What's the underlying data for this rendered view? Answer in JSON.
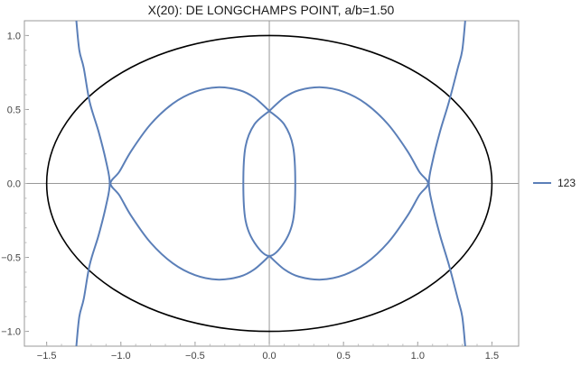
{
  "chart_data": {
    "type": "line",
    "title": "X(20): DE LONGCHAMPS POINT, a/b=1.50",
    "xlabel": "",
    "ylabel": "",
    "xlim": [
      -1.65,
      1.68
    ],
    "ylim": [
      -1.1,
      1.1
    ],
    "x_ticks": [
      -1.5,
      -1.0,
      -0.5,
      0.0,
      0.5,
      1.0,
      1.5
    ],
    "x_tick_labels": [
      "−1.5",
      "−1.0",
      "−0.5",
      "0.0",
      "0.5",
      "1.0",
      "1.5"
    ],
    "y_ticks": [
      -1.0,
      -0.5,
      0.0,
      0.5,
      1.0
    ],
    "y_tick_labels": [
      "−1.0",
      "−0.5",
      "0.0",
      "0.5",
      "1.0"
    ],
    "grid": false,
    "axes_through_origin": true,
    "legend": {
      "position": "right",
      "entries": [
        "123"
      ]
    },
    "colors": {
      "ellipse": "#000000",
      "curve": "#5b7fb8",
      "axes": "#999999",
      "frame": "#999999"
    },
    "ellipse": {
      "a": 1.5,
      "b": 1.0,
      "center": [
        0,
        0
      ]
    },
    "series": [
      {
        "name": "123",
        "parts": [
          {
            "id": "inner-lens",
            "points": [
              [
                0.0,
                0.49
              ],
              [
                0.1,
                0.4
              ],
              [
                0.16,
                0.25
              ],
              [
                0.175,
                0.0
              ],
              [
                0.16,
                -0.25
              ],
              [
                0.1,
                -0.4
              ],
              [
                0.0,
                -0.49
              ],
              [
                -0.1,
                -0.4
              ],
              [
                -0.16,
                -0.25
              ],
              [
                -0.175,
                0.0
              ],
              [
                -0.16,
                0.25
              ],
              [
                -0.1,
                0.4
              ],
              [
                0.0,
                0.49
              ]
            ]
          },
          {
            "id": "right-lobe",
            "points": [
              [
                0.0,
                0.49
              ],
              [
                0.1,
                0.58
              ],
              [
                0.2,
                0.63
              ],
              [
                0.35,
                0.65
              ],
              [
                0.5,
                0.62
              ],
              [
                0.65,
                0.54
              ],
              [
                0.8,
                0.4
              ],
              [
                0.93,
                0.22
              ],
              [
                1.01,
                0.08
              ],
              [
                1.07,
                0.0
              ],
              [
                1.01,
                -0.08
              ],
              [
                0.93,
                -0.22
              ],
              [
                0.8,
                -0.4
              ],
              [
                0.65,
                -0.54
              ],
              [
                0.5,
                -0.62
              ],
              [
                0.35,
                -0.65
              ],
              [
                0.2,
                -0.63
              ],
              [
                0.1,
                -0.58
              ],
              [
                0.0,
                -0.49
              ]
            ]
          },
          {
            "id": "left-lobe",
            "points": [
              [
                0.0,
                0.49
              ],
              [
                -0.1,
                0.58
              ],
              [
                -0.2,
                0.63
              ],
              [
                -0.35,
                0.65
              ],
              [
                -0.5,
                0.62
              ],
              [
                -0.65,
                0.54
              ],
              [
                -0.8,
                0.4
              ],
              [
                -0.93,
                0.22
              ],
              [
                -1.01,
                0.08
              ],
              [
                -1.07,
                0.0
              ],
              [
                -1.01,
                -0.08
              ],
              [
                -0.93,
                -0.22
              ],
              [
                -0.8,
                -0.4
              ],
              [
                -0.65,
                -0.54
              ],
              [
                -0.5,
                -0.62
              ],
              [
                -0.35,
                -0.65
              ],
              [
                -0.2,
                -0.63
              ],
              [
                -0.1,
                -0.58
              ],
              [
                0.0,
                -0.49
              ]
            ]
          },
          {
            "id": "right-branch",
            "points": [
              [
                1.32,
                1.1
              ],
              [
                1.3,
                0.9
              ],
              [
                1.27,
                0.78
              ],
              [
                1.21,
                0.55
              ],
              [
                1.15,
                0.35
              ],
              [
                1.1,
                0.15
              ],
              [
                1.075,
                0.0
              ],
              [
                1.1,
                -0.15
              ],
              [
                1.15,
                -0.35
              ],
              [
                1.21,
                -0.55
              ],
              [
                1.27,
                -0.78
              ],
              [
                1.3,
                -0.9
              ],
              [
                1.32,
                -1.1
              ]
            ]
          },
          {
            "id": "left-branch",
            "points": [
              [
                -1.3,
                1.1
              ],
              [
                -1.28,
                0.9
              ],
              [
                -1.25,
                0.78
              ],
              [
                -1.21,
                0.55
              ],
              [
                -1.15,
                0.35
              ],
              [
                -1.1,
                0.15
              ],
              [
                -1.075,
                0.0
              ],
              [
                -1.1,
                -0.15
              ],
              [
                -1.15,
                -0.35
              ],
              [
                -1.21,
                -0.55
              ],
              [
                -1.25,
                -0.78
              ],
              [
                -1.28,
                -0.9
              ],
              [
                -1.3,
                -1.1
              ]
            ]
          }
        ]
      }
    ]
  }
}
